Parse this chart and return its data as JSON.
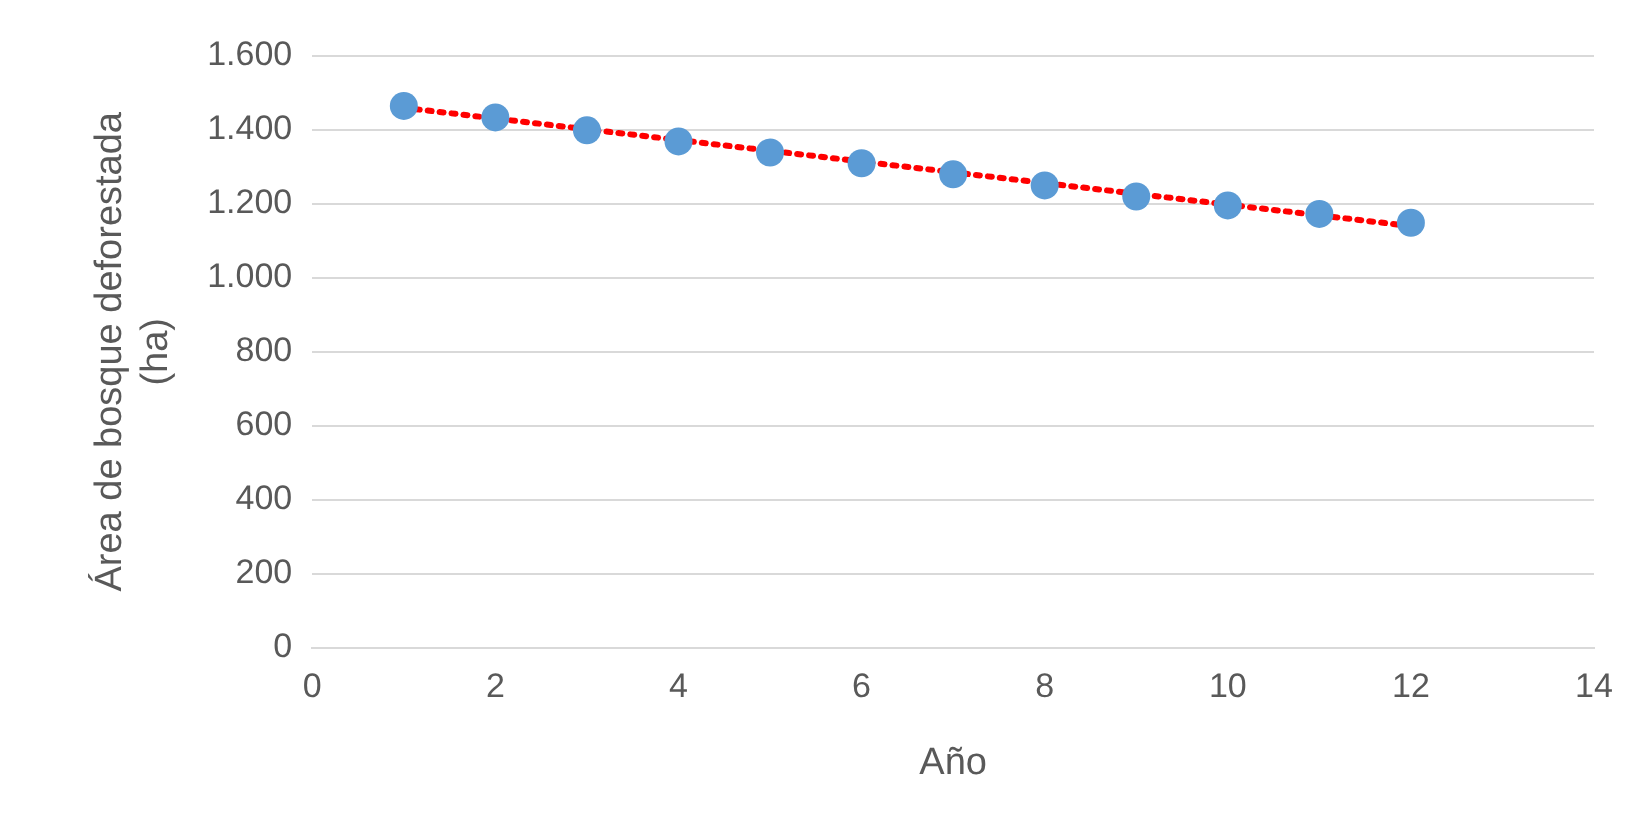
{
  "chart_data": {
    "type": "scatter",
    "xlabel": "Año",
    "ylabel": "Área de bosque deforestada (ha)",
    "x": [
      1,
      2,
      3,
      4,
      5,
      6,
      7,
      8,
      9,
      10,
      11,
      12
    ],
    "series": [
      {
        "color": "#5b9bd5",
        "marker": "circle",
        "values": [
          1465,
          1434,
          1399,
          1369,
          1339,
          1310,
          1280,
          1250,
          1220,
          1196,
          1173,
          1149
        ]
      },
      {
        "type": "line",
        "color": "#ff0000",
        "marker": "none",
        "line_style": "dotted",
        "x": [
          1,
          12
        ],
        "values": [
          1460,
          1140
        ]
      }
    ],
    "xlim": [
      0,
      14
    ],
    "xticks": [
      0,
      2,
      4,
      6,
      8,
      10,
      12,
      14
    ],
    "ylim": [
      0,
      1600
    ],
    "yticks": [
      0,
      200,
      400,
      600,
      800,
      {
        "value": 1000,
        "label": "1.000"
      },
      {
        "value": 1200,
        "label": "1.200"
      },
      {
        "value": 1400,
        "label": "1.400"
      },
      {
        "value": 1600,
        "label": "1.600"
      }
    ],
    "grid": "y",
    "legend": false
  }
}
